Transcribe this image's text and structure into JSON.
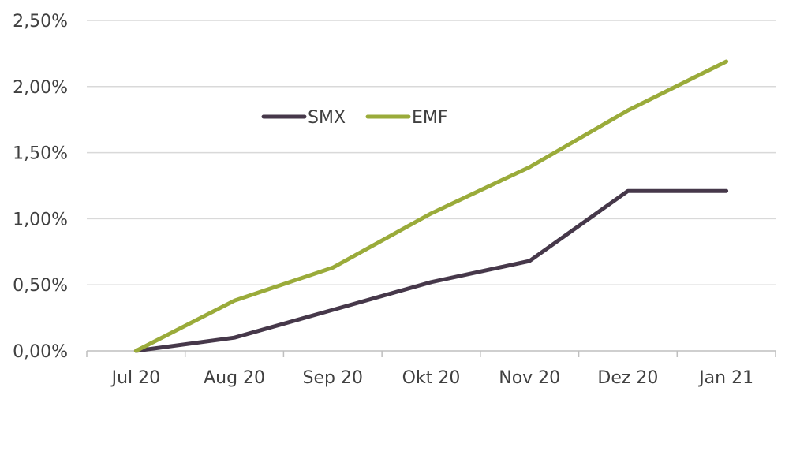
{
  "chart_data": {
    "type": "line",
    "title": "",
    "xlabel": "",
    "ylabel": "",
    "categories": [
      "Jul 20",
      "Aug 20",
      "Sep 20",
      "Okt 20",
      "Nov 20",
      "Dez 20",
      "Jan 21"
    ],
    "series": [
      {
        "name": "SMX",
        "values": [
          0.0,
          0.1,
          0.31,
          0.52,
          0.68,
          1.21,
          1.21
        ],
        "color": "#46384a"
      },
      {
        "name": "EMF",
        "values": [
          0.0,
          0.38,
          0.63,
          1.04,
          1.39,
          1.82,
          2.19
        ],
        "color": "#9aab3a"
      }
    ],
    "ylim": [
      0,
      2.5
    ],
    "yticks": [
      0,
      0.5,
      1.0,
      1.5,
      2.0,
      2.5
    ],
    "ytick_labels": [
      "0,00%",
      "0,50%",
      "1,00%",
      "1,50%",
      "2,00%",
      "2,50%"
    ],
    "grid": true,
    "legend_position": "top-left",
    "gridline_color": "#d9d9d9"
  }
}
